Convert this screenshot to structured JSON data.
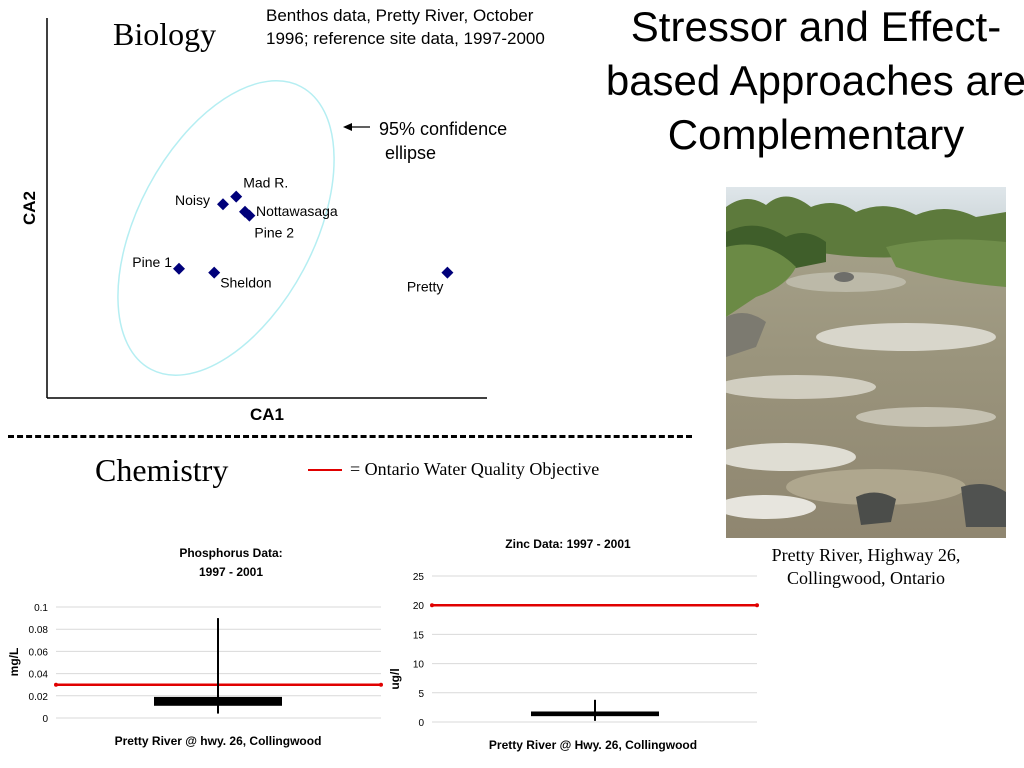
{
  "slide": {
    "title": "Stressor and Effect-based Approaches are Complementary",
    "biology_label": "Biology",
    "chemistry_label": "Chemistry",
    "benthos_note": "Benthos data, Pretty River, October 1996; reference site data, 1997-2000",
    "legend_text": "= Ontario Water Quality Objective",
    "photo_caption": "Pretty River, Highway 26, Collingwood, Ontario",
    "colors": {
      "objective_line": "#e00000",
      "markers": "#00007a",
      "ellipse": "#b5eef2"
    }
  },
  "chart_data": [
    {
      "type": "scatter",
      "title": "",
      "xlabel": "CA1",
      "ylabel": "CA2",
      "annotation": "95% confidence ellipse",
      "annotation_lines": [
        "95% confidence",
        "ellipse"
      ],
      "points": [
        {
          "label": "Mad R.",
          "x": 0.43,
          "y": 0.53
        },
        {
          "label": "Noisy",
          "x": 0.4,
          "y": 0.51
        },
        {
          "label": "Nottawasaga",
          "x": 0.45,
          "y": 0.49
        },
        {
          "label": "Pine 2",
          "x": 0.46,
          "y": 0.48
        },
        {
          "label": "Pine 1",
          "x": 0.3,
          "y": 0.34
        },
        {
          "label": "Sheldon",
          "x": 0.38,
          "y": 0.33
        },
        {
          "label": "Pretty",
          "x": 0.91,
          "y": 0.33
        }
      ],
      "xlim": [
        0,
        1
      ],
      "ylim": [
        0,
        1
      ],
      "grid": false
    },
    {
      "type": "bar",
      "title": "Phosphorus Data: 1997 - 2001",
      "title_lines": [
        "Phosphorus Data:",
        "1997 - 2001"
      ],
      "xlabel": "Pretty River @ hwy. 26, Collingwood",
      "ylabel": "mg/L",
      "ylim": [
        0,
        0.1
      ],
      "yticks": [
        "0",
        "0.02",
        "0.04",
        "0.06",
        "0.08",
        "0.1"
      ],
      "range": {
        "low": 0.011,
        "high": 0.019,
        "min": 0.004,
        "max": 0.09
      },
      "objective": 0.03,
      "grid": true
    },
    {
      "type": "bar",
      "title": "Zinc Data: 1997 - 2001",
      "xlabel": "Pretty River @ Hwy. 26, Collingwood",
      "ylabel": "ug/l",
      "ylim": [
        0,
        25
      ],
      "yticks": [
        "0",
        "5",
        "10",
        "15",
        "20",
        "25"
      ],
      "range": {
        "low": 1.0,
        "high": 1.8,
        "min": 0.2,
        "max": 3.8
      },
      "objective": 20,
      "grid": true
    }
  ]
}
